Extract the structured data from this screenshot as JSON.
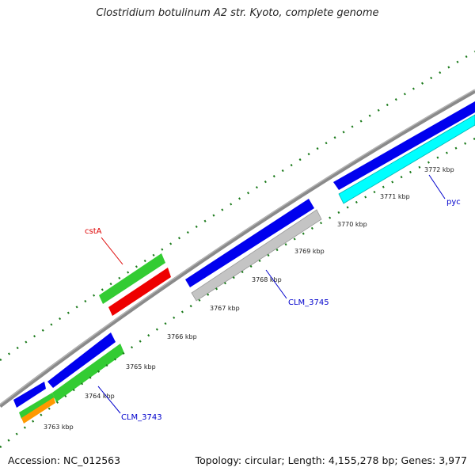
{
  "title": "Clostridium botulinum A2 str. Kyoto, complete genome",
  "footer": {
    "accession": "Accession: NC_012563",
    "summary": "Topology: circular; Length: 4,155,278 bp; Genes: 3,977"
  },
  "genome": {
    "topology": "circular",
    "length_bp": 4155278,
    "gene_count": 3977
  },
  "ticks": [
    {
      "label": "3763 kbp"
    },
    {
      "label": "3764 kbp"
    },
    {
      "label": "3765 kbp"
    },
    {
      "label": "3766 kbp"
    },
    {
      "label": "3767 kbp"
    },
    {
      "label": "3768 kbp"
    },
    {
      "label": "3769 kbp"
    },
    {
      "label": "3770 kbp"
    },
    {
      "label": "3771 kbp"
    },
    {
      "label": "3772 kbp"
    }
  ],
  "gene_labels": [
    {
      "text": "cstA",
      "color": "#dd0000"
    },
    {
      "text": "CLM_3745",
      "color": "#0000cc"
    },
    {
      "text": "CLM_3743",
      "color": "#0000cc"
    },
    {
      "text": "pyc",
      "color": "#0000cc"
    }
  ],
  "colors": {
    "backbone": "#808080",
    "tick": "#1a7a1a",
    "cds_forward": "#0000ee",
    "cds_grey": "#c0c0c0",
    "cds_green": "#33cc33",
    "cds_red": "#ee0000",
    "cds_orange": "#ff9900",
    "cds_cyan": "#00ffff"
  }
}
